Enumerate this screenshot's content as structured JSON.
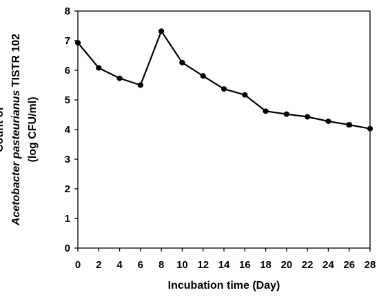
{
  "chart_data": {
    "type": "line",
    "title": "",
    "xlabel": "Incubation time (Day)",
    "ylabel_lines": [
      [
        {
          "text": "Count of",
          "italic": false
        }
      ],
      [
        {
          "text": "Acetobacter  pasteurianus",
          "italic": true
        },
        {
          "text": " TISTR 102",
          "italic": false
        }
      ],
      [
        {
          "text": "(log CFU/ml)",
          "italic": false
        }
      ]
    ],
    "xlim": [
      0,
      28
    ],
    "ylim": [
      0,
      8
    ],
    "x_ticks": [
      0,
      2,
      4,
      6,
      8,
      10,
      12,
      14,
      16,
      18,
      20,
      22,
      24,
      26,
      28
    ],
    "y_ticks": [
      0,
      1,
      2,
      3,
      4,
      5,
      6,
      7,
      8
    ],
    "grid": false,
    "series": [
      {
        "color": "#000000",
        "marker": "circle",
        "x": [
          0,
          2,
          4,
          6,
          8,
          10,
          12,
          14,
          16,
          18,
          20,
          22,
          24,
          26,
          28
        ],
        "y": [
          6.93,
          6.08,
          5.73,
          5.5,
          7.32,
          6.26,
          5.81,
          5.37,
          5.17,
          4.62,
          4.52,
          4.43,
          4.28,
          4.16,
          4.03
        ],
        "error": [
          0.03,
          0.03,
          0.03,
          0.03,
          0.03,
          0.03,
          0.03,
          0.03,
          0.03,
          0.03,
          0.03,
          0.03,
          0.03,
          0.06,
          0.03
        ]
      }
    ]
  }
}
